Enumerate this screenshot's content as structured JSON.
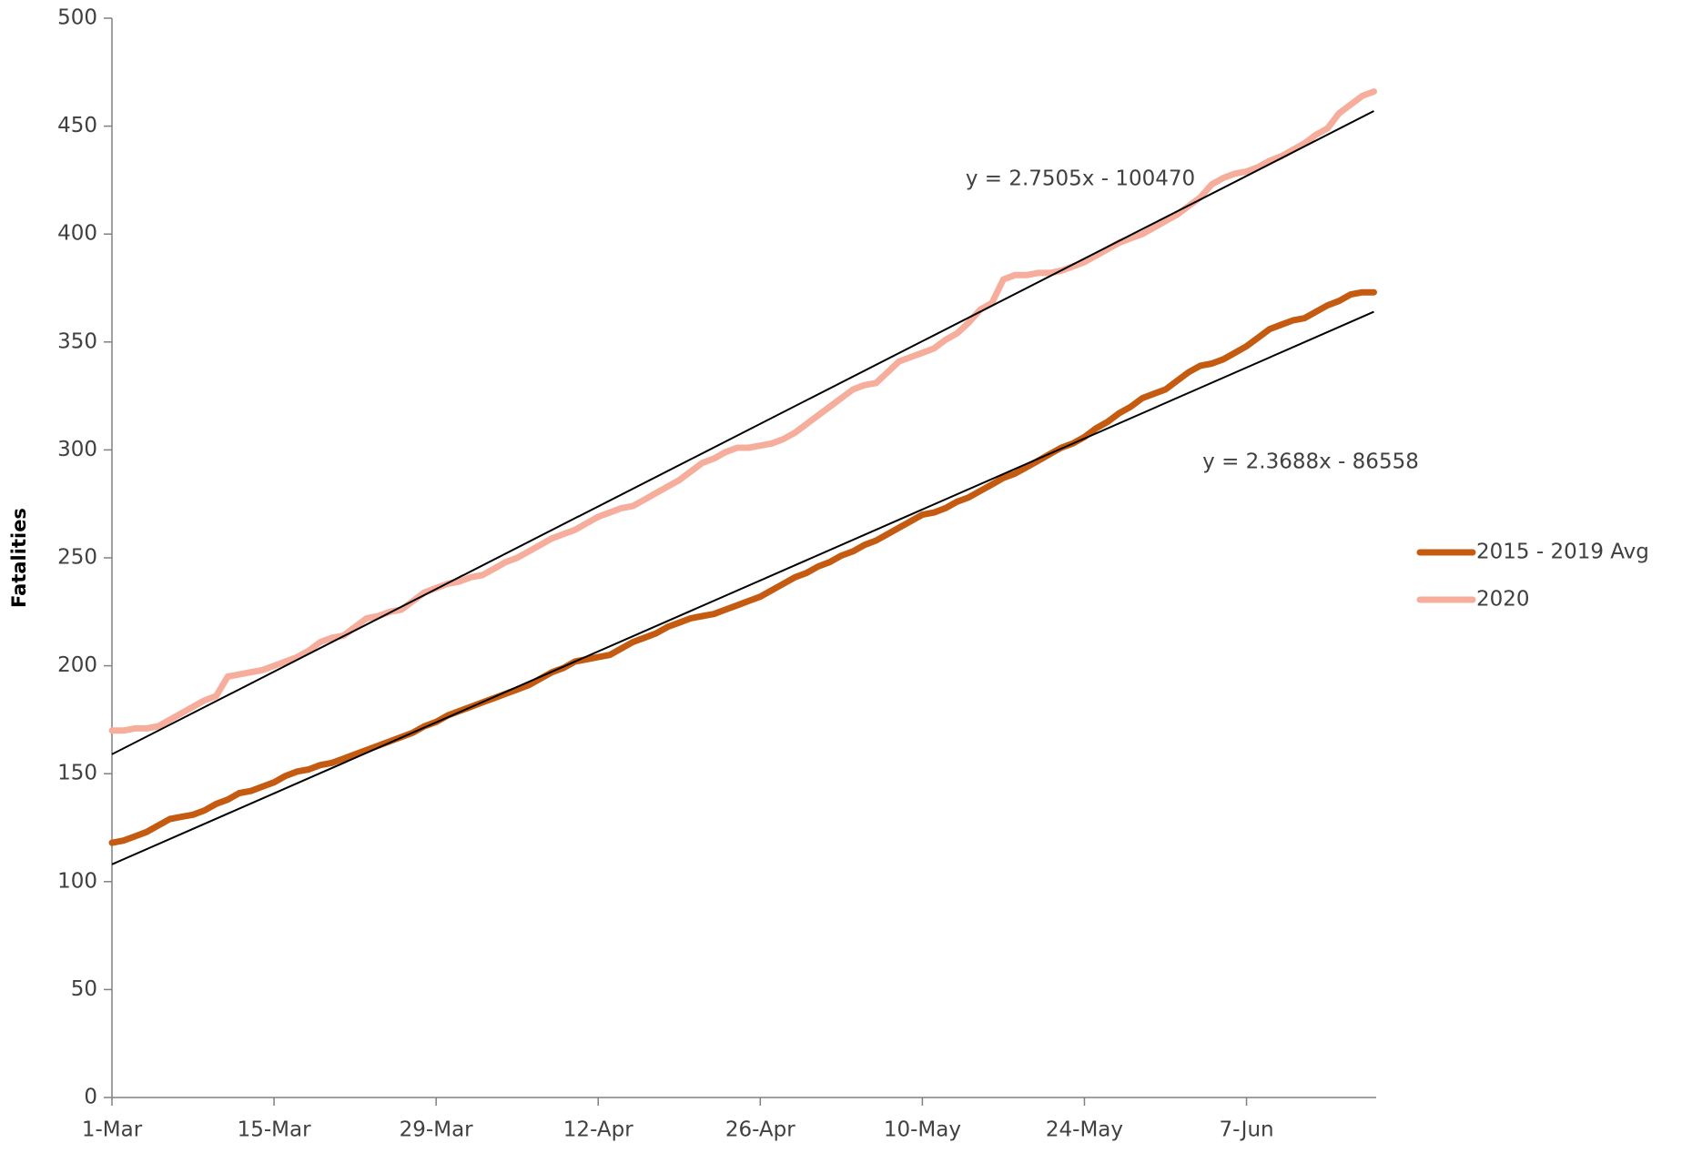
{
  "chart_data": {
    "type": "line",
    "y_label": "Fatalities",
    "categories": [
      "1-Mar",
      null,
      null,
      null,
      null,
      null,
      null,
      null,
      null,
      null,
      null,
      null,
      null,
      null,
      "15-Mar",
      null,
      null,
      null,
      null,
      null,
      null,
      null,
      null,
      null,
      null,
      null,
      null,
      null,
      "29-Mar",
      null,
      null,
      null,
      null,
      null,
      null,
      null,
      null,
      null,
      null,
      null,
      null,
      null,
      "12-Apr",
      null,
      null,
      null,
      null,
      null,
      null,
      null,
      null,
      null,
      null,
      null,
      null,
      null,
      "26-Apr",
      null,
      null,
      null,
      null,
      null,
      null,
      null,
      null,
      null,
      null,
      null,
      null,
      null,
      "10-May",
      null,
      null,
      null,
      null,
      null,
      null,
      null,
      null,
      null,
      null,
      null,
      null,
      null,
      "24-May",
      null,
      null,
      null,
      null,
      null,
      null,
      null,
      null,
      null,
      null,
      null,
      null,
      null,
      "7-Jun",
      null,
      null,
      null,
      null,
      null,
      null,
      null,
      null,
      null,
      null,
      null
    ],
    "series": [
      {
        "name": "2015 - 2019 Avg",
        "color": "#c55a11",
        "values": [
          118,
          119,
          121,
          123,
          126,
          129,
          130,
          131,
          133,
          136,
          138,
          141,
          142,
          144,
          146,
          149,
          151,
          152,
          154,
          155,
          157,
          159,
          161,
          163,
          165,
          167,
          169,
          172,
          174,
          177,
          179,
          181,
          183,
          185,
          187,
          189,
          191,
          194,
          197,
          199,
          202,
          203,
          204,
          205,
          208,
          211,
          213,
          215,
          218,
          220,
          222,
          223,
          224,
          226,
          228,
          230,
          232,
          235,
          238,
          241,
          243,
          246,
          248,
          251,
          253,
          256,
          258,
          261,
          264,
          267,
          270,
          271,
          273,
          276,
          278,
          281,
          284,
          287,
          289,
          292,
          295,
          298,
          301,
          303,
          306,
          310,
          313,
          317,
          320,
          324,
          326,
          328,
          332,
          336,
          339,
          340,
          342,
          345,
          348,
          352,
          356,
          358,
          360,
          361,
          364,
          367,
          369,
          372,
          373,
          373
        ]
      },
      {
        "name": "2020",
        "color": "#f7ad9c",
        "values": [
          170,
          170,
          171,
          171,
          172,
          175,
          178,
          181,
          184,
          186,
          195,
          196,
          197,
          198,
          200,
          202,
          204,
          207,
          211,
          213,
          214,
          218,
          222,
          223,
          225,
          226,
          230,
          234,
          236,
          238,
          239,
          241,
          242,
          245,
          248,
          250,
          253,
          256,
          259,
          261,
          263,
          266,
          269,
          271,
          273,
          274,
          277,
          280,
          283,
          286,
          290,
          294,
          296,
          299,
          301,
          301,
          302,
          303,
          305,
          308,
          312,
          316,
          320,
          324,
          328,
          330,
          331,
          336,
          341,
          343,
          345,
          347,
          351,
          354,
          359,
          365,
          368,
          379,
          381,
          381,
          382,
          382,
          383,
          385,
          387,
          390,
          393,
          396,
          398,
          400,
          403,
          406,
          409,
          413,
          417,
          423,
          426,
          428,
          429,
          431,
          434,
          436,
          439,
          442,
          446,
          449,
          456,
          460,
          464,
          466
        ]
      }
    ],
    "trendlines": [
      {
        "label": "y = 2.3688x - 86558",
        "color": "#000000",
        "start": 108,
        "end": 364
      },
      {
        "label": "y = 2.7505x - 100470",
        "color": "#000000",
        "start": 159,
        "end": 457
      }
    ],
    "ylim": [
      0,
      500
    ],
    "yticks": [
      0,
      50,
      100,
      150,
      200,
      250,
      300,
      350,
      400,
      450,
      500
    ],
    "grid": false,
    "legend": "right"
  }
}
